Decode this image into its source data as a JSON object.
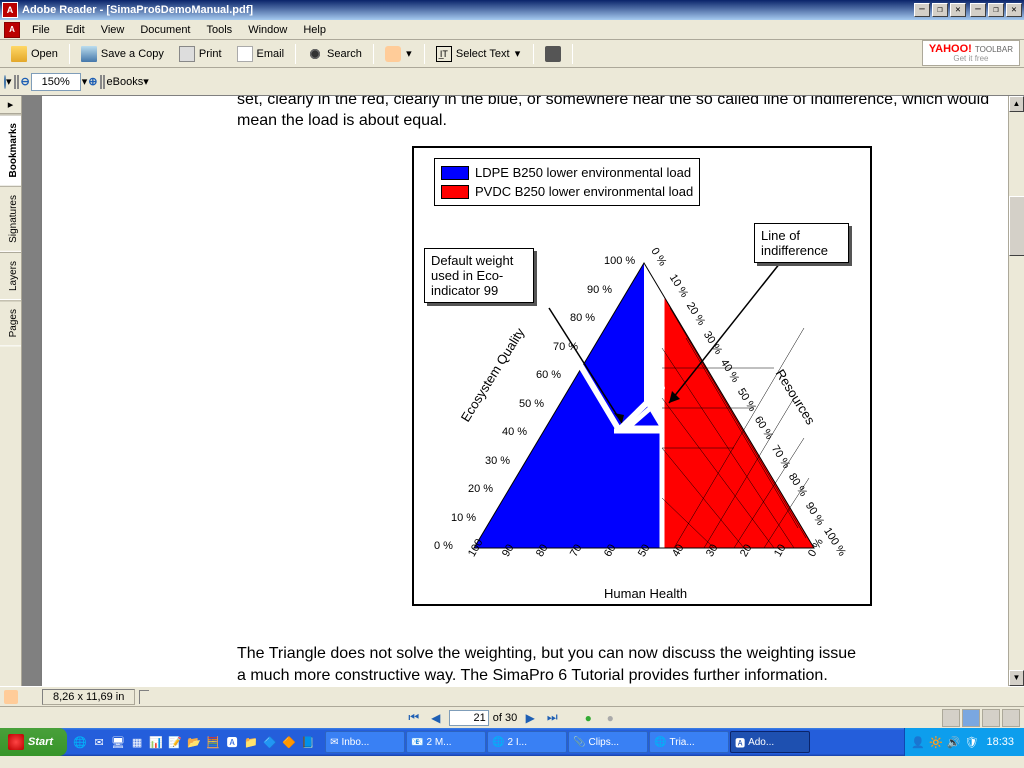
{
  "window": {
    "title": "Adobe Reader - [SimaPro6DemoManual.pdf]"
  },
  "menu": {
    "items": [
      "File",
      "Edit",
      "View",
      "Document",
      "Tools",
      "Window",
      "Help"
    ]
  },
  "toolbar1": {
    "open": "Open",
    "save": "Save a Copy",
    "print": "Print",
    "email": "Email",
    "search": "Search",
    "select": "Select Text"
  },
  "yahoo": {
    "brand": "YAHOO!",
    "label": "TOOLBAR",
    "sub": "Get it free"
  },
  "toolbar2": {
    "zoom": "150%",
    "ebooks": "eBooks"
  },
  "sidetabs": [
    "Bookmarks",
    "Signatures",
    "Layers",
    "Pages"
  ],
  "doc": {
    "text_top": "set, clearly in the red, clearly in the blue, or somewhere near the so called line of indifference, which would mean the load is about equal.",
    "text_bottom1": "The Triangle does not solve the weighting, but you can now discuss the weighting issue",
    "text_bottom2": "a much more constructive way. The SimaPro 6 Tutorial provides further information."
  },
  "diagram": {
    "legend1": "LDPE B250 lower environmental load",
    "legend2": "PVDC B250 lower environmental load",
    "color1": "#0000ff",
    "color2": "#ff0000",
    "callout_left": "Default weight used in Eco-indicator 99",
    "callout_right": "Line of indifference",
    "axis_left": "Ecosystem Quality",
    "axis_right": "Resources",
    "axis_bottom": "Human Health",
    "ticks_left": [
      "0 %",
      "10 %",
      "20 %",
      "30 %",
      "40 %",
      "50 %",
      "60 %",
      "70 %",
      "80 %",
      "90 %",
      "100 %"
    ],
    "ticks_right": [
      "0 %",
      "10 %",
      "20 %",
      "30 %",
      "40 %",
      "50 %",
      "60 %",
      "70 %",
      "80 %",
      "90 %",
      "100 %"
    ],
    "ticks_bottom": [
      "100",
      "90",
      "80",
      "70",
      "60",
      "50",
      "40",
      "30",
      "20",
      "10",
      "0 %"
    ]
  },
  "status": {
    "size": "8,26 x 11,69 in"
  },
  "nav": {
    "page": "21",
    "total": "of 30"
  },
  "taskbar": {
    "start": "Start",
    "tasks": [
      "Inbo...",
      "2 M...",
      "2 I...",
      "Clips...",
      "Tria...",
      "Ado..."
    ],
    "time": "18:33"
  }
}
